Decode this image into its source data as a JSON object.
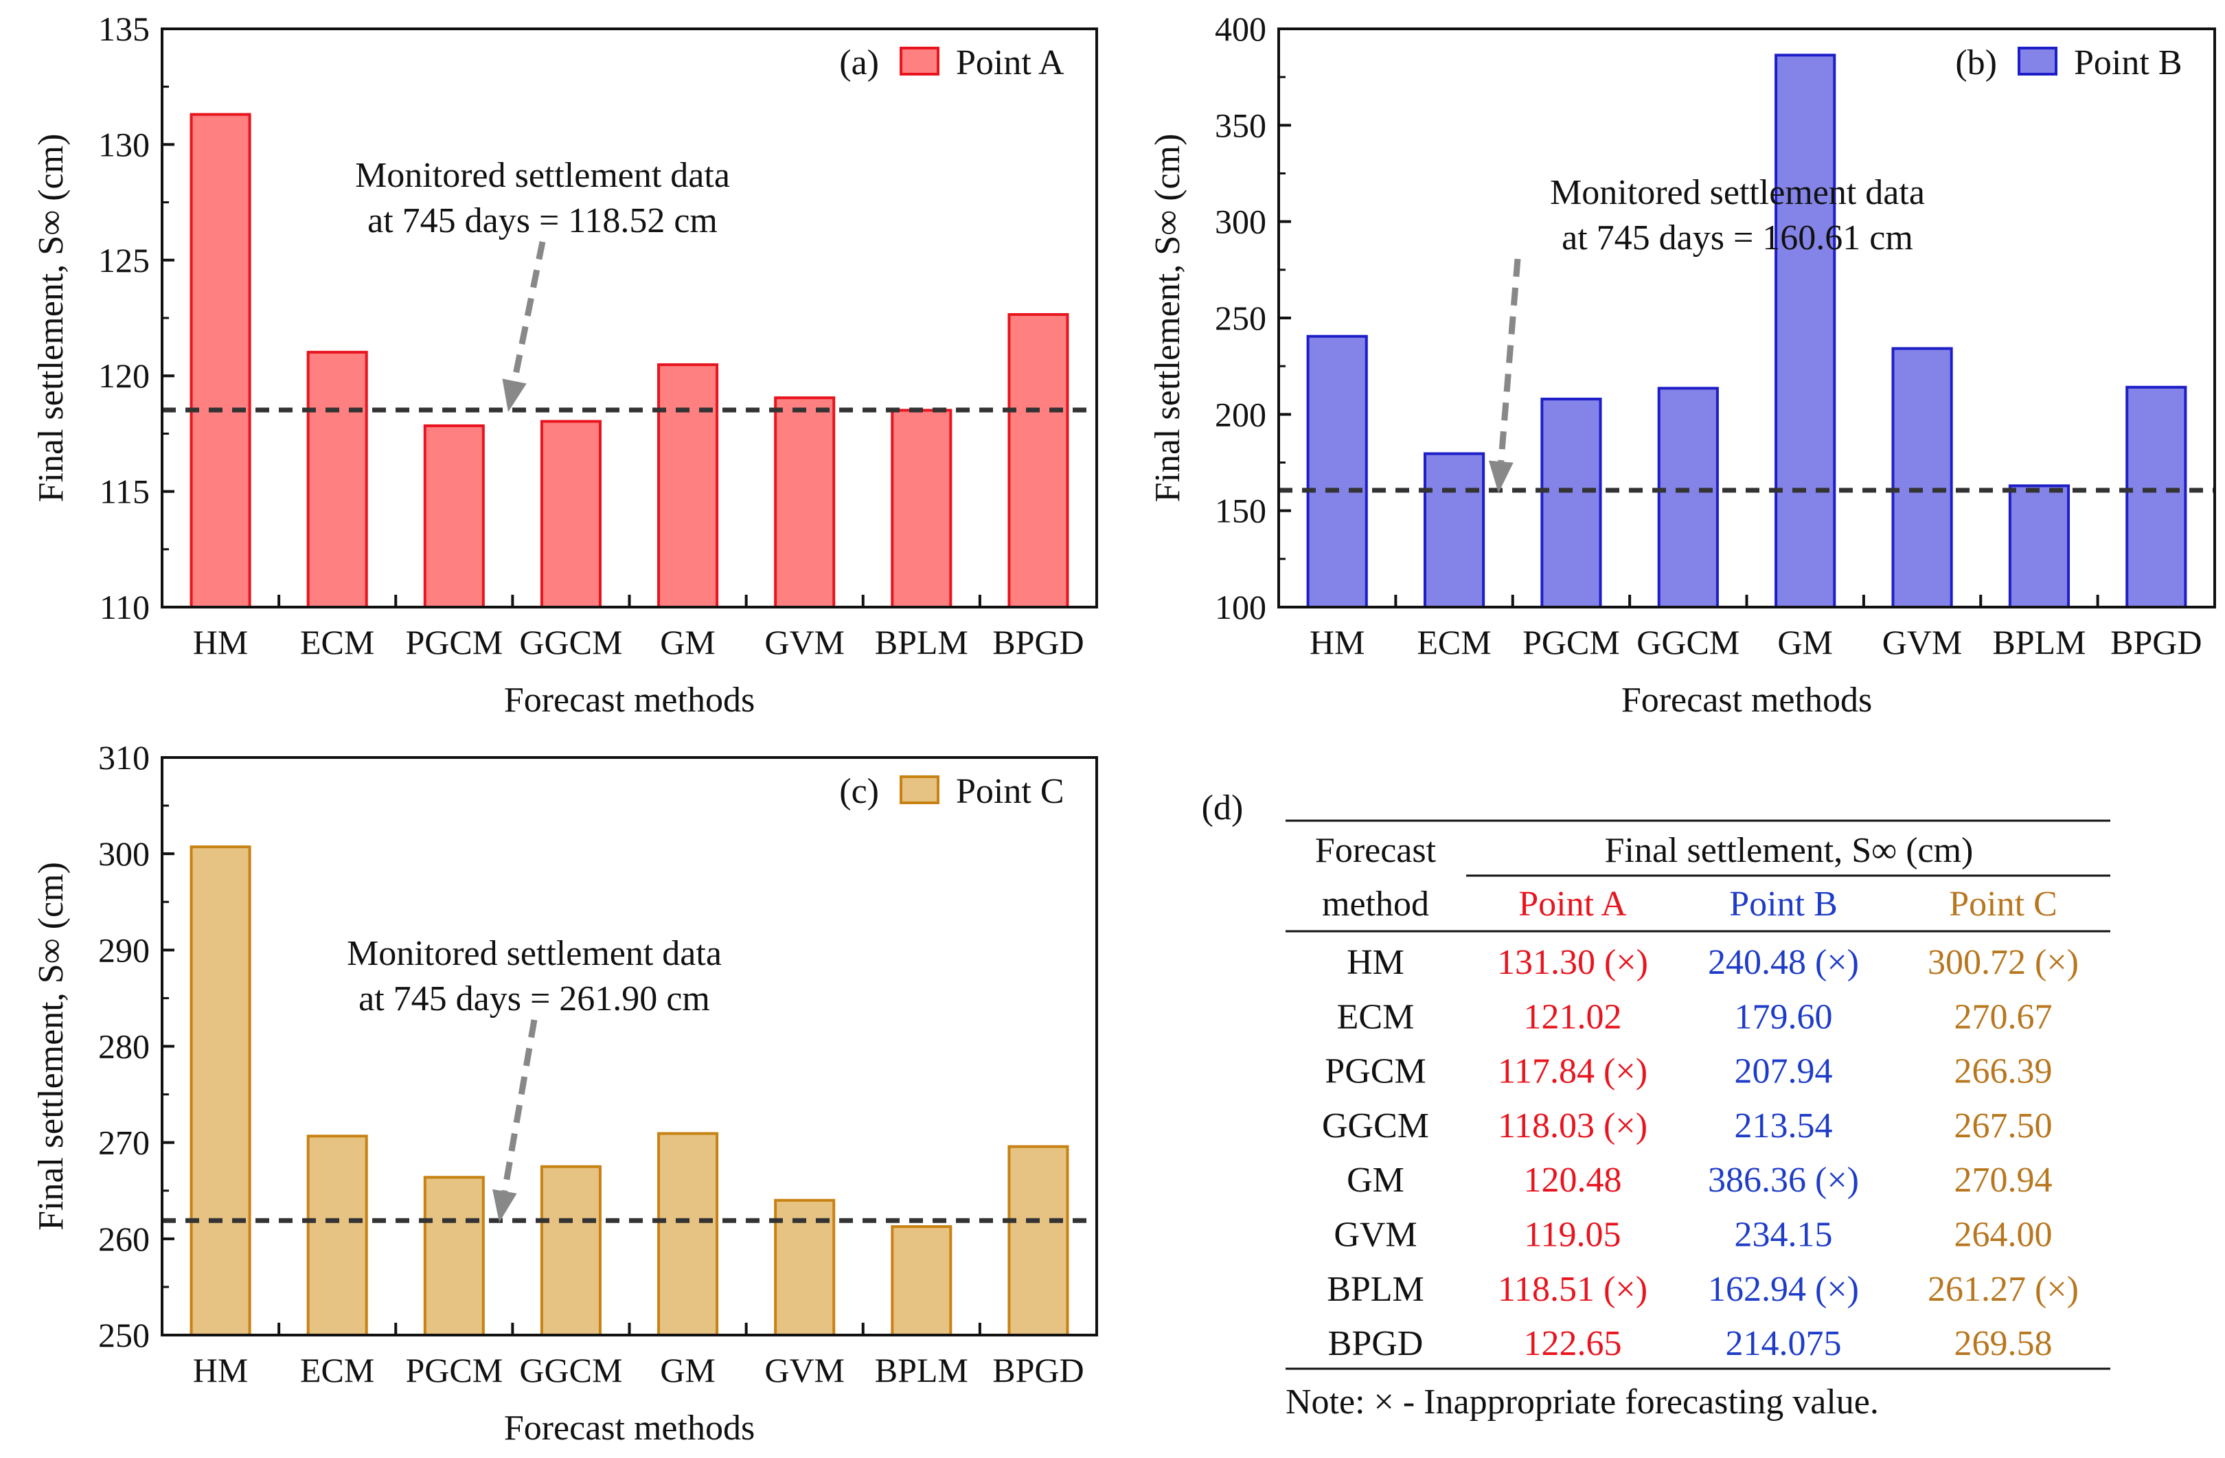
{
  "chart_data": [
    {
      "type": "bar",
      "panel_label": "(a)",
      "title": "",
      "xlabel": "Forecast methods",
      "ylabel": "Final settlement, S∞ (cm)",
      "ylim": [
        110,
        135
      ],
      "yticks": [
        110,
        115,
        120,
        125,
        130,
        135
      ],
      "categories": [
        "HM",
        "ECM",
        "PGCM",
        "GGCM",
        "GM",
        "GVM",
        "BPLM",
        "BPGD"
      ],
      "series": [
        {
          "name": "Point A",
          "values": [
            131.3,
            121.02,
            117.84,
            118.03,
            120.48,
            119.05,
            118.51,
            122.65
          ]
        }
      ],
      "reference_line": 118.52,
      "annotation": [
        "Monitored settlement data",
        "at 745 days = 118.52 cm"
      ],
      "colors": {
        "fill": "#ff8080",
        "stroke": "#e8141e"
      },
      "legend": "top-right"
    },
    {
      "type": "bar",
      "panel_label": "(b)",
      "title": "",
      "xlabel": "Forecast methods",
      "ylabel": "Final settlement, S∞ (cm)",
      "ylim": [
        100,
        400
      ],
      "yticks": [
        100,
        150,
        200,
        250,
        300,
        350,
        400
      ],
      "categories": [
        "HM",
        "ECM",
        "PGCM",
        "GGCM",
        "GM",
        "GVM",
        "BPLM",
        "BPGD"
      ],
      "series": [
        {
          "name": "Point B",
          "values": [
            240.48,
            179.6,
            207.94,
            213.54,
            386.36,
            234.15,
            162.94,
            214.075
          ]
        }
      ],
      "reference_line": 160.61,
      "annotation": [
        "Monitored settlement data",
        "at 745 days = 160.61 cm"
      ],
      "colors": {
        "fill": "#8484e8",
        "stroke": "#1e1ec8"
      },
      "legend": "top-right"
    },
    {
      "type": "bar",
      "panel_label": "(c)",
      "title": "",
      "xlabel": "Forecast methods",
      "ylabel": "Final settlement, S∞ (cm)",
      "ylim": [
        250,
        310
      ],
      "yticks": [
        250,
        260,
        270,
        280,
        290,
        300,
        310
      ],
      "categories": [
        "HM",
        "ECM",
        "PGCM",
        "GGCM",
        "GM",
        "GVM",
        "BPLM",
        "BPGD"
      ],
      "series": [
        {
          "name": "Point C",
          "values": [
            300.72,
            270.67,
            266.39,
            267.5,
            270.94,
            264.0,
            261.27,
            269.58
          ]
        }
      ],
      "reference_line": 261.9,
      "annotation": [
        "Monitored settlement data",
        "at 745 days = 261.90 cm"
      ],
      "colors": {
        "fill": "#e6c382",
        "stroke": "#c88214"
      },
      "legend": "top-right"
    }
  ],
  "table": {
    "panel_label": "(d)",
    "header_left": [
      "Forecast",
      "method"
    ],
    "header_group": "Final settlement, S∞ (cm)",
    "columns": [
      "Point A",
      "Point B",
      "Point C"
    ],
    "column_colors": [
      "#e8141e",
      "#1e3cc8",
      "#b8761e"
    ],
    "rows": [
      [
        "HM",
        "131.30 (×)",
        "240.48 (×)",
        "300.72 (×)"
      ],
      [
        "ECM",
        "121.02",
        "179.60",
        "270.67"
      ],
      [
        "PGCM",
        "117.84 (×)",
        "207.94",
        "266.39"
      ],
      [
        "GGCM",
        "118.03 (×)",
        "213.54",
        "267.50"
      ],
      [
        "GM",
        "120.48",
        "386.36 (×)",
        "270.94"
      ],
      [
        "GVM",
        "119.05",
        "234.15",
        "264.00"
      ],
      [
        "BPLM",
        "118.51 (×)",
        "162.94 (×)",
        "261.27 (×)"
      ],
      [
        "BPGD",
        "122.65",
        "214.075",
        "269.58"
      ]
    ],
    "note": "Note: × - Inappropriate forecasting value."
  }
}
